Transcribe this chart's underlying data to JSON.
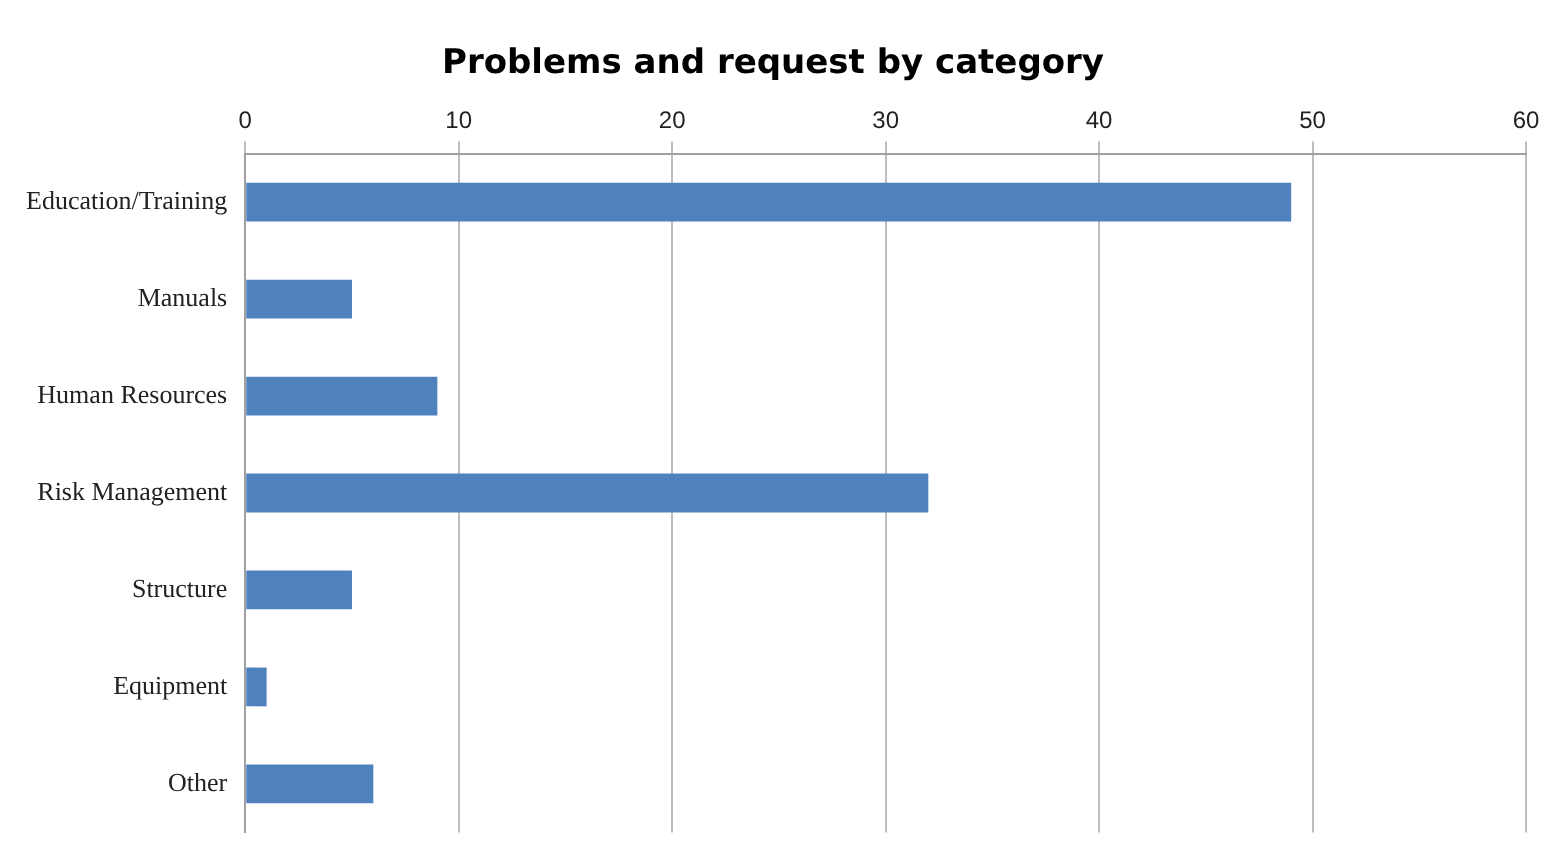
{
  "chart_data": {
    "type": "bar",
    "orientation": "horizontal",
    "title": "Problems and request by category",
    "categories": [
      "Education/Training",
      "Manuals",
      "Human Resources",
      "Risk Management",
      "Structure",
      "Equipment",
      "Other"
    ],
    "values": [
      49,
      5,
      9,
      32,
      5,
      1,
      6
    ],
    "color": "#4f81bd",
    "xlim": [
      0,
      60
    ],
    "xticks": [
      0,
      10,
      20,
      30,
      40,
      50,
      60
    ],
    "grid": "x"
  }
}
